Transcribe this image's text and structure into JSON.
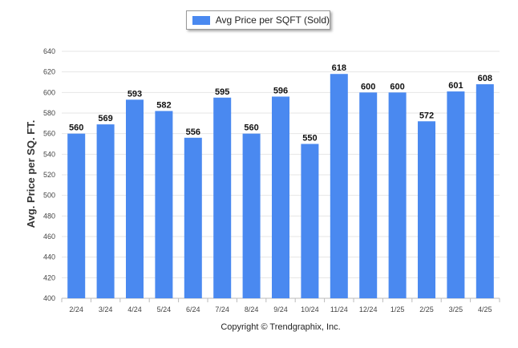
{
  "legend": {
    "label": "Avg Price per SQFT (Sold)",
    "color": "#4a89f0"
  },
  "footer": {
    "copyright": "Copyright © Trendgraphix, Inc."
  },
  "chart_data": {
    "type": "bar",
    "title": "",
    "xlabel": "",
    "ylabel": "Avg. Price per SQ. FT.",
    "categories": [
      "2/24",
      "3/24",
      "4/24",
      "5/24",
      "6/24",
      "7/24",
      "8/24",
      "9/24",
      "10/24",
      "11/24",
      "12/24",
      "1/25",
      "2/25",
      "3/25",
      "4/25"
    ],
    "series": [
      {
        "name": "Avg Price per SQFT (Sold)",
        "values": [
          560,
          569,
          593,
          582,
          556,
          595,
          560,
          596,
          550,
          618,
          600,
          600,
          572,
          601,
          608
        ],
        "color": "#4a89f0"
      }
    ],
    "ylim": [
      400,
      640
    ],
    "yticks": [
      400,
      420,
      440,
      460,
      480,
      500,
      520,
      540,
      560,
      580,
      600,
      620,
      640
    ],
    "grid": true,
    "legend_position": "top-center",
    "data_labels": true
  }
}
